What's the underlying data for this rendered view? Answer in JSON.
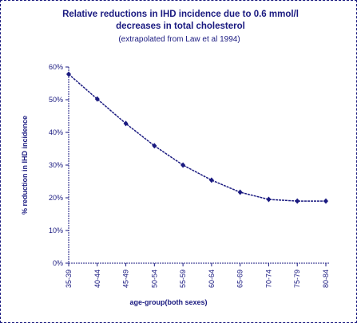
{
  "chart_data": {
    "type": "line",
    "title": "Relative reductions in IHD incidence due to 0.6 mmol/l decreases in total cholesterol",
    "subtitle": "(extrapolated from Law et al 1994)",
    "x_label": "age-group(both sexes)",
    "y_label": "% reduction in IHD incidence",
    "categories": [
      "35-39",
      "40-44",
      "45-49",
      "50-54",
      "55-59",
      "60-64",
      "65-69",
      "70-74",
      "75-79",
      "80-84"
    ],
    "values": [
      57.8,
      50.2,
      42.7,
      35.9,
      30,
      25.4,
      21.7,
      19.5,
      19.0,
      19.0
    ],
    "color": "#1a1a80",
    "ylim": [
      0,
      60
    ],
    "yticks": [
      {
        "value": 0,
        "label": "0%"
      },
      {
        "value": 10,
        "label": "10%"
      },
      {
        "value": 20,
        "label": "20%"
      },
      {
        "value": 30,
        "label": "30%"
      },
      {
        "value": 40,
        "label": "40%"
      },
      {
        "value": 50,
        "label": "50%"
      },
      {
        "value": 60,
        "label": "60%"
      }
    ]
  }
}
